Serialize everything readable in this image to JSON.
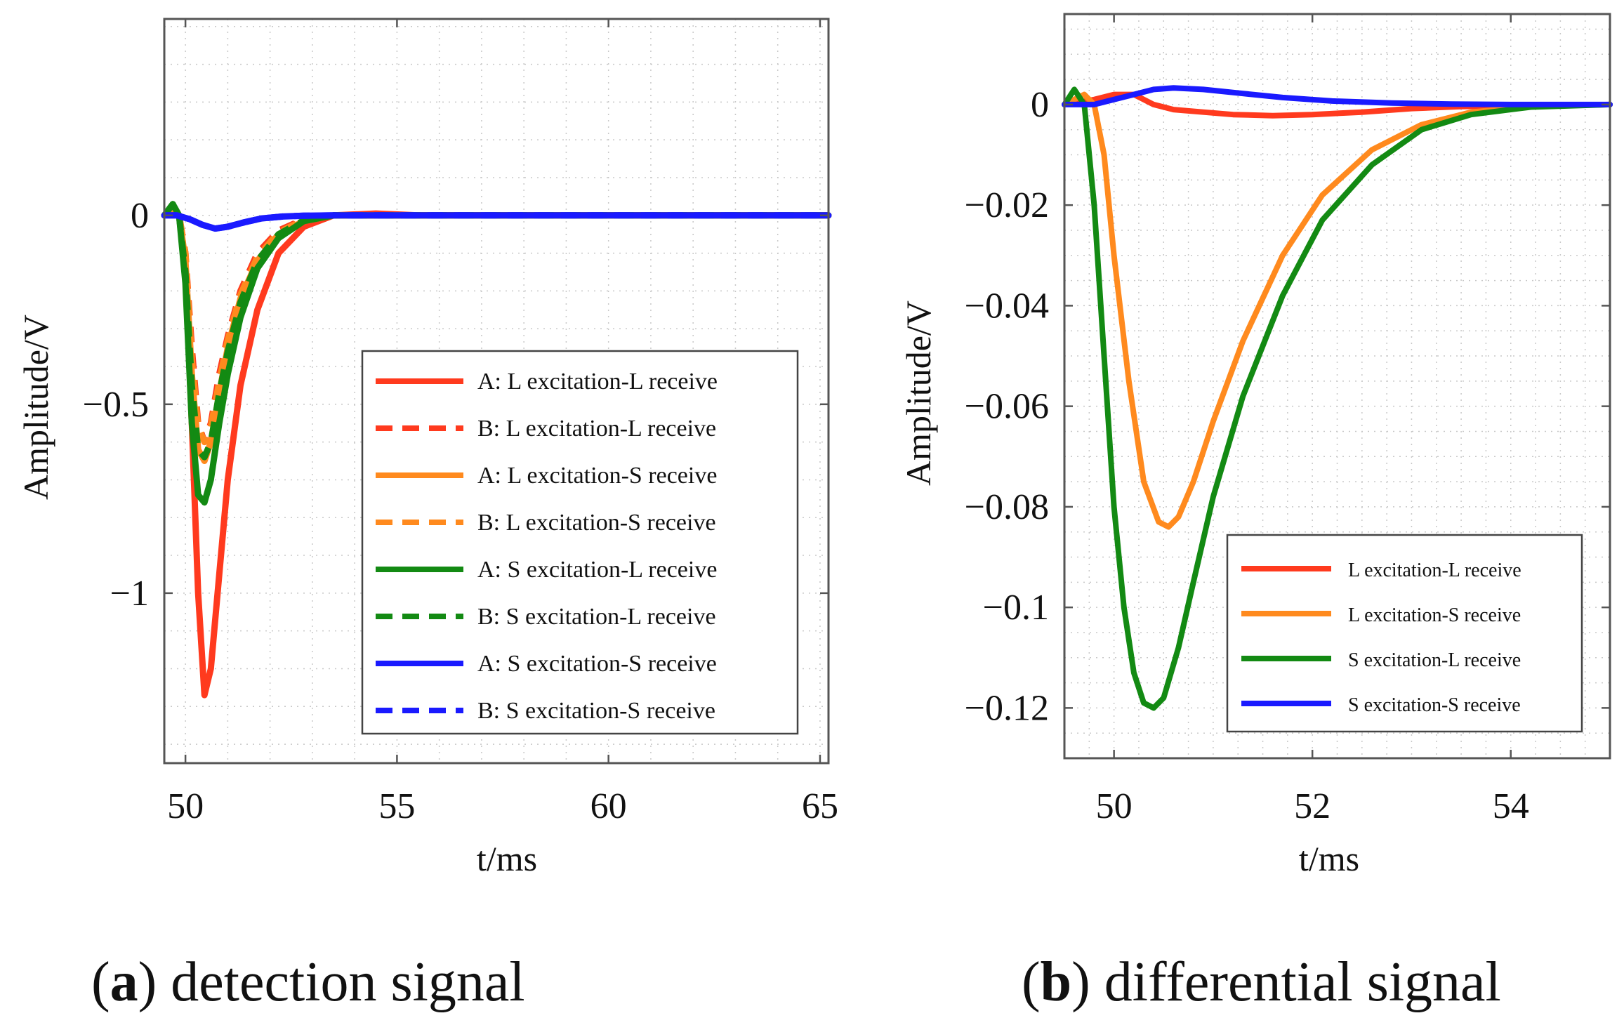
{
  "chart_data": [
    {
      "type": "line",
      "title": "",
      "caption": {
        "letter": "a",
        "text": "detection signal"
      },
      "xlabel": "t/ms",
      "ylabel": "Amplitude/V",
      "xlim": [
        49.5,
        65.2
      ],
      "ylim": [
        -1.45,
        0.52
      ],
      "xticks": [
        50,
        55,
        60,
        65
      ],
      "yticks": [
        0,
        -0.5,
        -1
      ],
      "ytick_labels": [
        "0",
        "−0.5",
        "−1"
      ],
      "grid": true,
      "legend_position": "lower-right",
      "series": [
        {
          "name": "A: L excitation-L receive",
          "color": "#ff3a1e",
          "style": "solid",
          "x": [
            49.5,
            49.7,
            49.85,
            50.0,
            50.15,
            50.3,
            50.45,
            50.6,
            50.8,
            51.0,
            51.3,
            51.7,
            52.2,
            52.8,
            53.5,
            54.5,
            55.5,
            65.2
          ],
          "y": [
            0,
            0.02,
            0.0,
            -0.15,
            -0.55,
            -1.0,
            -1.27,
            -1.2,
            -0.95,
            -0.7,
            -0.45,
            -0.25,
            -0.1,
            -0.03,
            0,
            0.005,
            0,
            0
          ]
        },
        {
          "name": "B: L excitation-L receive",
          "color": "#ff3a1e",
          "style": "dashed",
          "x": [
            49.5,
            49.7,
            49.85,
            50.0,
            50.15,
            50.3,
            50.45,
            50.6,
            50.8,
            51.0,
            51.3,
            51.7,
            52.2,
            52.8,
            53.5,
            54.5,
            65.2
          ],
          "y": [
            0,
            0.02,
            0.0,
            -0.1,
            -0.35,
            -0.55,
            -0.6,
            -0.55,
            -0.42,
            -0.32,
            -0.2,
            -0.1,
            -0.04,
            -0.01,
            0,
            0,
            0
          ]
        },
        {
          "name": "A: L excitation-S receive",
          "color": "#ff8a1e",
          "style": "solid",
          "x": [
            49.5,
            49.7,
            49.85,
            50.0,
            50.15,
            50.3,
            50.45,
            50.6,
            50.8,
            51.0,
            51.3,
            51.7,
            52.2,
            52.8,
            53.5,
            54.5,
            65.2
          ],
          "y": [
            0,
            0.02,
            0.0,
            -0.12,
            -0.42,
            -0.62,
            -0.65,
            -0.6,
            -0.47,
            -0.35,
            -0.22,
            -0.12,
            -0.05,
            -0.015,
            0,
            0,
            0
          ]
        },
        {
          "name": "B: L excitation-S receive",
          "color": "#ff8a1e",
          "style": "dashed",
          "x": [
            49.5,
            49.7,
            49.85,
            50.0,
            50.15,
            50.3,
            50.45,
            50.6,
            50.8,
            51.0,
            51.3,
            51.7,
            52.2,
            52.8,
            53.5,
            54.5,
            65.2
          ],
          "y": [
            0,
            0.02,
            0.0,
            -0.1,
            -0.38,
            -0.56,
            -0.6,
            -0.56,
            -0.44,
            -0.33,
            -0.21,
            -0.11,
            -0.045,
            -0.012,
            0,
            0,
            0
          ]
        },
        {
          "name": "A: S excitation-L receive",
          "color": "#138a13",
          "style": "solid",
          "x": [
            49.5,
            49.7,
            49.85,
            50.0,
            50.15,
            50.3,
            50.45,
            50.6,
            50.8,
            51.0,
            51.3,
            51.7,
            52.2,
            52.8,
            53.5,
            54.5,
            65.2
          ],
          "y": [
            0,
            0.03,
            0.0,
            -0.18,
            -0.55,
            -0.74,
            -0.76,
            -0.7,
            -0.55,
            -0.42,
            -0.27,
            -0.14,
            -0.06,
            -0.015,
            0,
            0,
            0
          ]
        },
        {
          "name": "B: S excitation-L receive",
          "color": "#138a13",
          "style": "dashed",
          "x": [
            49.5,
            49.7,
            49.85,
            50.0,
            50.15,
            50.3,
            50.45,
            50.6,
            50.8,
            51.0,
            51.3,
            51.7,
            52.2,
            52.8,
            53.5,
            54.5,
            65.2
          ],
          "y": [
            0,
            0.03,
            0.0,
            -0.15,
            -0.45,
            -0.62,
            -0.64,
            -0.6,
            -0.47,
            -0.36,
            -0.23,
            -0.12,
            -0.05,
            -0.013,
            0,
            0,
            0
          ]
        },
        {
          "name": "A: S excitation-S receive",
          "color": "#1a1aff",
          "style": "solid",
          "x": [
            49.5,
            49.8,
            50.1,
            50.4,
            50.7,
            51.0,
            51.4,
            51.8,
            52.3,
            52.8,
            53.5,
            54.5,
            65.2
          ],
          "y": [
            0,
            0.0,
            -0.01,
            -0.025,
            -0.035,
            -0.03,
            -0.018,
            -0.008,
            -0.003,
            -0.001,
            0,
            0,
            0
          ]
        },
        {
          "name": "B: S excitation-S receive",
          "color": "#1a1aff",
          "style": "dashed",
          "x": [
            49.5,
            49.8,
            50.1,
            50.4,
            50.7,
            51.0,
            51.4,
            51.8,
            52.3,
            52.8,
            53.5,
            54.5,
            65.2
          ],
          "y": [
            0,
            0.0,
            -0.01,
            -0.025,
            -0.035,
            -0.03,
            -0.018,
            -0.008,
            -0.003,
            -0.001,
            0,
            0,
            0
          ]
        }
      ]
    },
    {
      "type": "line",
      "title": "",
      "caption": {
        "letter": "b",
        "text": "differential signal"
      },
      "xlabel": "t/ms",
      "ylabel": "Amplitude/V",
      "xlim": [
        49.5,
        55.0
      ],
      "ylim": [
        -0.13,
        0.018
      ],
      "xticks": [
        50,
        52,
        54
      ],
      "yticks": [
        0,
        -0.02,
        -0.04,
        -0.06,
        -0.08,
        -0.1,
        -0.12
      ],
      "ytick_labels": [
        "0",
        "−0.02",
        "−0.04",
        "−0.06",
        "−0.08",
        "−0.1",
        "−0.12"
      ],
      "grid": true,
      "legend_position": "lower-right",
      "series": [
        {
          "name": "L excitation-L receive",
          "color": "#ff3a1e",
          "style": "solid",
          "x": [
            49.5,
            49.8,
            50.0,
            50.2,
            50.4,
            50.6,
            50.9,
            51.2,
            51.6,
            52.0,
            52.5,
            53.0,
            53.5,
            54.0,
            55.0
          ],
          "y": [
            0,
            0.001,
            0.002,
            0.002,
            0.0,
            -0.001,
            -0.0015,
            -0.002,
            -0.0022,
            -0.002,
            -0.0015,
            -0.0008,
            -0.0004,
            -0.0002,
            0
          ]
        },
        {
          "name": "L excitation-S receive",
          "color": "#ff8a1e",
          "style": "solid",
          "x": [
            49.5,
            49.7,
            49.8,
            49.9,
            50.0,
            50.15,
            50.3,
            50.45,
            50.55,
            50.65,
            50.8,
            51.0,
            51.3,
            51.7,
            52.1,
            52.6,
            53.1,
            53.6,
            54.2,
            55.0
          ],
          "y": [
            0,
            0.002,
            0.0,
            -0.01,
            -0.03,
            -0.055,
            -0.075,
            -0.083,
            -0.084,
            -0.082,
            -0.075,
            -0.063,
            -0.047,
            -0.03,
            -0.018,
            -0.009,
            -0.004,
            -0.0015,
            -0.0004,
            0
          ]
        },
        {
          "name": "S excitation-L receive",
          "color": "#138a13",
          "style": "solid",
          "x": [
            49.5,
            49.6,
            49.7,
            49.8,
            49.9,
            50.0,
            50.1,
            50.2,
            50.3,
            50.4,
            50.5,
            50.65,
            50.8,
            51.0,
            51.3,
            51.7,
            52.1,
            52.6,
            53.1,
            53.6,
            54.2,
            55.0
          ],
          "y": [
            0,
            0.003,
            0.0,
            -0.02,
            -0.05,
            -0.08,
            -0.1,
            -0.113,
            -0.119,
            -0.12,
            -0.118,
            -0.108,
            -0.095,
            -0.078,
            -0.058,
            -0.038,
            -0.023,
            -0.012,
            -0.005,
            -0.002,
            -0.0005,
            0
          ]
        },
        {
          "name": "S excitation-S receive",
          "color": "#1a1aff",
          "style": "solid",
          "x": [
            49.5,
            49.8,
            50.0,
            50.2,
            50.4,
            50.6,
            50.9,
            51.3,
            51.7,
            52.2,
            52.8,
            53.4,
            54.0,
            55.0
          ],
          "y": [
            0,
            0.0,
            0.001,
            0.002,
            0.003,
            0.0033,
            0.003,
            0.0022,
            0.0014,
            0.0007,
            0.0003,
            0.0001,
            0,
            0
          ]
        }
      ]
    }
  ]
}
